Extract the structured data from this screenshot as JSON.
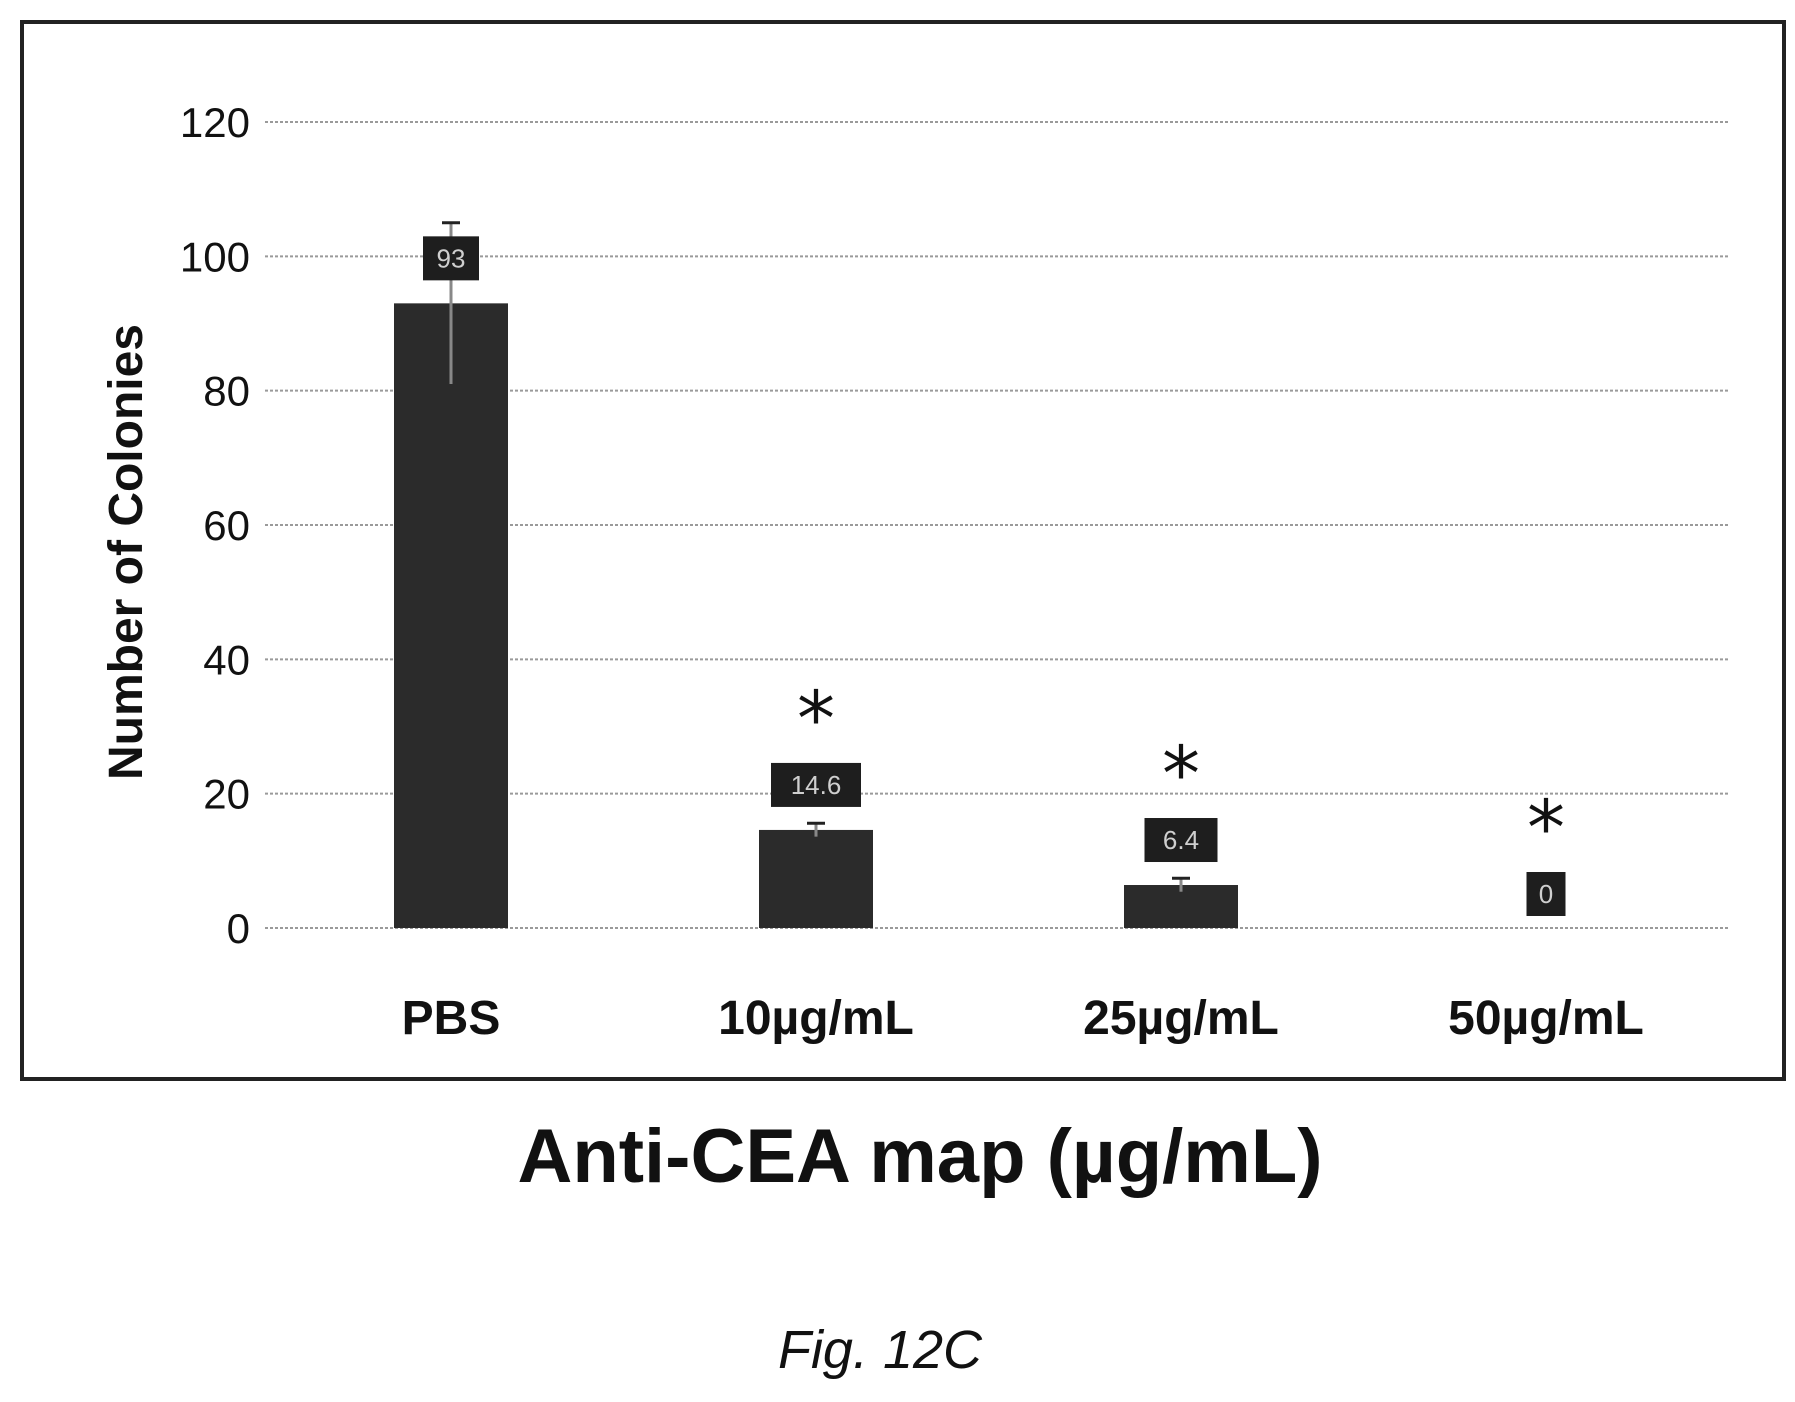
{
  "chart_data": {
    "type": "bar",
    "categories": [
      "PBS",
      "10µg/mL",
      "25µg/mL",
      "50µg/mL"
    ],
    "values": [
      93,
      14.6,
      6.4,
      0
    ],
    "value_labels": [
      "93",
      "14.6",
      "6.4",
      "0"
    ],
    "error_bars": [
      12,
      1,
      1,
      0
    ],
    "significance_markers": [
      "",
      "*",
      "*",
      "*"
    ],
    "xlabel": "Anti-CEA map (µg/mL)",
    "ylabel": "Number of Colonies",
    "ylim": [
      0,
      120
    ],
    "yticks": [
      0,
      20,
      40,
      60,
      80,
      100,
      120
    ],
    "grid": true,
    "colors": {
      "bar": "#2b2b2b",
      "grid": "#9a9a9a",
      "frame": "#222222",
      "text": "#111111"
    }
  },
  "figure": {
    "caption": "Fig. 12C"
  }
}
